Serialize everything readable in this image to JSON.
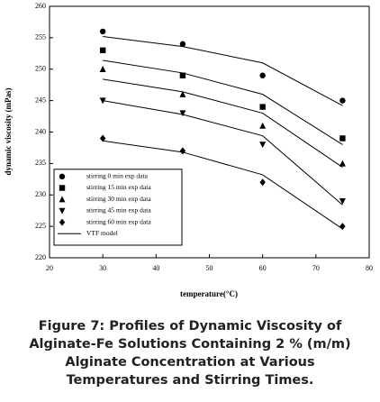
{
  "chart_data": {
    "type": "scatter",
    "xlabel": "temperature(°C)",
    "ylabel": "dynamic viscosity (mPas)",
    "xlim": [
      20,
      80
    ],
    "xticks": [
      20,
      30,
      40,
      50,
      60,
      70,
      80
    ],
    "ylim": [
      220,
      260
    ],
    "yticks": [
      220,
      225,
      230,
      235,
      240,
      245,
      250,
      255,
      260
    ],
    "x": [
      30,
      45,
      60,
      75
    ],
    "series": [
      {
        "name": "stirring 0 min exp data",
        "color": "#000000",
        "marker": "circle",
        "values": [
          256,
          254,
          249,
          245
        ]
      },
      {
        "name": "stirring 15 min exp data",
        "color": "#000000",
        "marker": "square",
        "values": [
          253,
          249,
          244,
          239
        ]
      },
      {
        "name": "stirring 30 min exp data",
        "color": "#000000",
        "marker": "triangle-up",
        "values": [
          250,
          246,
          241,
          235
        ]
      },
      {
        "name": "stirring 45 min exp data",
        "color": "#000000",
        "marker": "triangle-down",
        "values": [
          245,
          243,
          238,
          229
        ]
      },
      {
        "name": "stirring 60 min exp data",
        "color": "#000000",
        "marker": "diamond",
        "values": [
          239,
          237,
          232,
          225
        ]
      }
    ],
    "model": {
      "name": "VTF model",
      "color": "#000000",
      "lines": [
        [
          255.2,
          253.6,
          251,
          244.2
        ],
        [
          251.4,
          249.4,
          246,
          238
        ],
        [
          248.4,
          246.4,
          243,
          234.4
        ],
        [
          245,
          242.8,
          239.4,
          228.4
        ],
        [
          238.6,
          236.8,
          233.2,
          224.6
        ]
      ]
    },
    "legend": "lower left"
  },
  "caption": {
    "lines": [
      "Figure 7: Profiles of Dynamic Viscosity of",
      "Alginate-Fe Solutions Containing 2 % (m/m)",
      "Alginate Concentration at Various",
      "Temperatures and Stirring Times."
    ]
  }
}
